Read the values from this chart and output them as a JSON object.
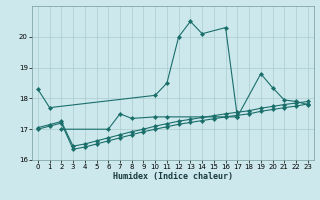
{
  "title": "",
  "xlabel": "Humidex (Indice chaleur)",
  "bg_color": "#cce8ec",
  "grid_color": "#aacccc",
  "line_color": "#1a6e6a",
  "xlim": [
    -0.5,
    23.5
  ],
  "ylim": [
    16,
    21
  ],
  "yticks": [
    16,
    17,
    18,
    19,
    20
  ],
  "xticks": [
    0,
    1,
    2,
    3,
    4,
    5,
    6,
    7,
    8,
    9,
    10,
    11,
    12,
    13,
    14,
    15,
    16,
    17,
    18,
    19,
    20,
    21,
    22,
    23
  ],
  "lines": [
    {
      "x": [
        0,
        1,
        10,
        11,
        12,
        13,
        14,
        16,
        17,
        19,
        20,
        21,
        22,
        23
      ],
      "y": [
        18.3,
        17.7,
        18.1,
        18.5,
        20.0,
        20.5,
        20.1,
        20.3,
        17.4,
        18.8,
        18.35,
        17.95,
        17.9,
        17.8
      ]
    },
    {
      "x": [
        2,
        6,
        7,
        8,
        10,
        11,
        17
      ],
      "y": [
        17.0,
        17.0,
        17.5,
        17.35,
        17.4,
        17.4,
        17.4
      ]
    },
    {
      "x": [
        0,
        1,
        2,
        3,
        4,
        5,
        6,
        7,
        8,
        9,
        10,
        11,
        12,
        13,
        14,
        15,
        16,
        17,
        18,
        19,
        20,
        21,
        22,
        23
      ],
      "y": [
        17.05,
        17.15,
        17.25,
        16.45,
        16.52,
        16.62,
        16.72,
        16.82,
        16.92,
        17.0,
        17.1,
        17.18,
        17.26,
        17.32,
        17.38,
        17.44,
        17.5,
        17.55,
        17.6,
        17.68,
        17.74,
        17.8,
        17.85,
        17.9
      ]
    },
    {
      "x": [
        0,
        1,
        2,
        3,
        4,
        5,
        6,
        7,
        8,
        9,
        10,
        11,
        12,
        13,
        14,
        15,
        16,
        17,
        18,
        19,
        20,
        21,
        22,
        23
      ],
      "y": [
        17.0,
        17.1,
        17.2,
        16.35,
        16.42,
        16.52,
        16.62,
        16.72,
        16.82,
        16.92,
        17.0,
        17.08,
        17.16,
        17.22,
        17.28,
        17.34,
        17.4,
        17.45,
        17.5,
        17.58,
        17.64,
        17.7,
        17.75,
        17.82
      ]
    }
  ]
}
